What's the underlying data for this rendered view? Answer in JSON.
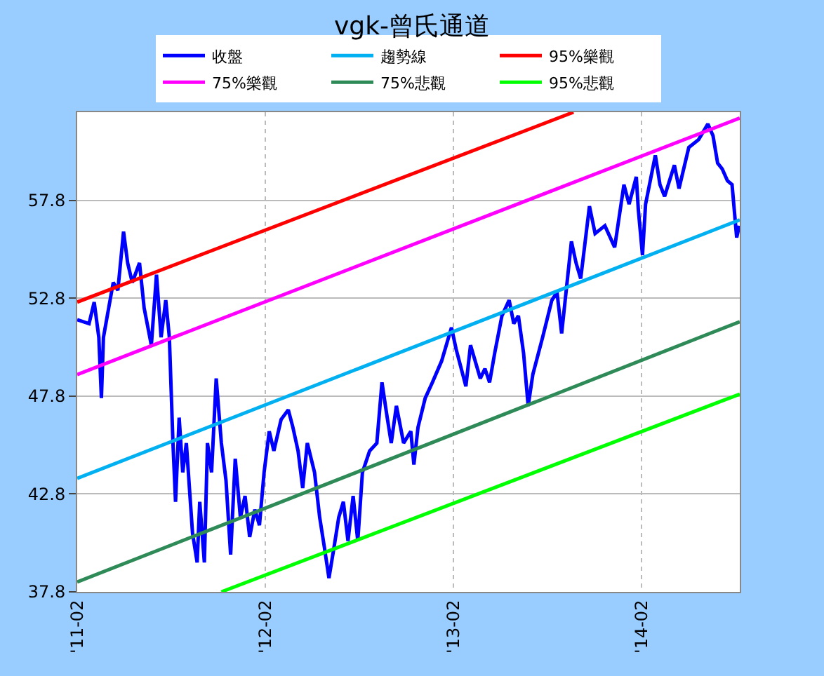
{
  "chart_data": {
    "type": "line",
    "title": "vgk-曾氏通道",
    "marker": "none",
    "line_style": "solid",
    "grid": true,
    "legend": "top",
    "xlim": [
      "2011-02-01",
      "2014-08-11"
    ],
    "xticks": [
      {
        "value": "2011-02-01",
        "label": "'11-02"
      },
      {
        "value": "2012-02-01",
        "label": "'12-02"
      },
      {
        "value": "2013-02-01",
        "label": "'13-02"
      },
      {
        "value": "2014-02-01",
        "label": "'14-02"
      }
    ],
    "ylim": [
      37.8,
      62.3
    ],
    "yticks": [
      37.8,
      42.8,
      47.8,
      52.8,
      57.8
    ],
    "series": [
      {
        "name": "收盤",
        "color": "#0000ff",
        "x": [
          "2011-02-01",
          "2011-02-24",
          "2011-03-06",
          "2011-03-15",
          "2011-03-20",
          "2011-03-24",
          "2011-04-12",
          "2011-04-21",
          "2011-05-02",
          "2011-05-10",
          "2011-05-19",
          "2011-06-02",
          "2011-06-11",
          "2011-06-25",
          "2011-07-05",
          "2011-07-14",
          "2011-07-23",
          "2011-07-30",
          "2011-08-06",
          "2011-08-11",
          "2011-08-18",
          "2011-08-25",
          "2011-09-01",
          "2011-09-13",
          "2011-09-22",
          "2011-09-27",
          "2011-10-06",
          "2011-10-12",
          "2011-10-20",
          "2011-10-29",
          "2011-11-08",
          "2011-11-17",
          "2011-11-26",
          "2011-12-05",
          "2011-12-15",
          "2011-12-24",
          "2012-01-02",
          "2012-01-12",
          "2012-01-21",
          "2012-01-30",
          "2012-02-09",
          "2012-02-18",
          "2012-03-03",
          "2012-03-17",
          "2012-03-26",
          "2012-04-05",
          "2012-04-14",
          "2012-04-23",
          "2012-05-07",
          "2012-05-17",
          "2012-05-26",
          "2012-06-04",
          "2012-06-14",
          "2012-06-23",
          "2012-07-02",
          "2012-07-11",
          "2012-07-21",
          "2012-07-30",
          "2012-08-08",
          "2012-08-22",
          "2012-09-05",
          "2012-09-15",
          "2012-09-24",
          "2012-10-03",
          "2012-10-13",
          "2012-10-27",
          "2012-11-10",
          "2012-11-16",
          "2012-11-24",
          "2012-12-08",
          "2012-12-22",
          "2013-01-09",
          "2013-01-28",
          "2013-02-06",
          "2013-02-25",
          "2013-03-06",
          "2013-03-25",
          "2013-04-03",
          "2013-04-12",
          "2013-04-22",
          "2013-05-06",
          "2013-05-20",
          "2013-05-29",
          "2013-06-07",
          "2013-06-17",
          "2013-06-26",
          "2013-07-05",
          "2013-07-24",
          "2013-08-11",
          "2013-08-21",
          "2013-08-30",
          "2013-09-18",
          "2013-09-27",
          "2013-10-06",
          "2013-10-23",
          "2013-11-03",
          "2013-11-22",
          "2013-12-11",
          "2013-12-29",
          "2014-01-08",
          "2014-01-22",
          "2014-01-26",
          "2014-02-03",
          "2014-02-09",
          "2014-02-28",
          "2014-03-09",
          "2014-03-18",
          "2014-04-06",
          "2014-04-15",
          "2014-05-04",
          "2014-05-23",
          "2014-06-10",
          "2014-06-20",
          "2014-06-29",
          "2014-07-08",
          "2014-07-18",
          "2014-07-27",
          "2014-08-05",
          "2014-08-10"
        ],
        "values": [
          51.7,
          51.5,
          52.6,
          50.8,
          47.7,
          50.8,
          53.6,
          53.2,
          56.2,
          54.6,
          53.6,
          54.6,
          52.3,
          50.4,
          54.0,
          50.8,
          52.7,
          50.8,
          45.4,
          42.4,
          46.7,
          43.9,
          45.4,
          40.8,
          39.3,
          42.4,
          39.3,
          45.4,
          43.9,
          48.7,
          45.4,
          43.5,
          39.7,
          44.6,
          41.6,
          42.7,
          40.6,
          42.0,
          41.2,
          43.9,
          46.0,
          45.0,
          46.6,
          47.1,
          46.2,
          45.0,
          43.1,
          45.4,
          43.9,
          41.6,
          40.1,
          38.5,
          40.1,
          41.6,
          42.4,
          40.4,
          42.7,
          40.4,
          43.9,
          45.0,
          45.4,
          48.5,
          46.9,
          45.4,
          47.3,
          45.4,
          46.0,
          44.3,
          46.2,
          47.7,
          48.5,
          49.6,
          51.3,
          50.2,
          48.3,
          50.4,
          48.7,
          49.2,
          48.5,
          50.0,
          51.9,
          52.7,
          51.5,
          51.9,
          50.0,
          47.3,
          48.9,
          50.8,
          52.7,
          53.1,
          51.0,
          55.7,
          54.6,
          53.8,
          57.5,
          56.1,
          56.5,
          55.4,
          58.6,
          57.6,
          59.0,
          57.3,
          55.0,
          57.6,
          60.1,
          58.6,
          58.0,
          59.6,
          58.4,
          60.5,
          60.9,
          61.7,
          61.1,
          59.7,
          59.4,
          58.8,
          58.6,
          55.9,
          56.5
        ]
      },
      {
        "name": "趨勢線",
        "color": "#00b0f0",
        "x": [
          "2011-02-01",
          "2014-08-11"
        ],
        "values": [
          43.6,
          56.8
        ]
      },
      {
        "name": "95%樂觀",
        "color": "#ff0000",
        "x": [
          "2011-02-01",
          "2013-09-22"
        ],
        "values": [
          52.6,
          62.3
        ]
      },
      {
        "name": "75%樂觀",
        "color": "#ff00ff",
        "x": [
          "2011-02-01",
          "2014-08-11"
        ],
        "values": [
          48.9,
          62.0
        ]
      },
      {
        "name": "75%悲觀",
        "color": "#2e8b57",
        "x": [
          "2011-02-01",
          "2014-08-11"
        ],
        "values": [
          38.3,
          51.6
        ]
      },
      {
        "name": "95%悲觀",
        "color": "#00ff00",
        "x": [
          "2011-11-08",
          "2014-08-11"
        ],
        "values": [
          37.8,
          47.9
        ]
      }
    ]
  }
}
